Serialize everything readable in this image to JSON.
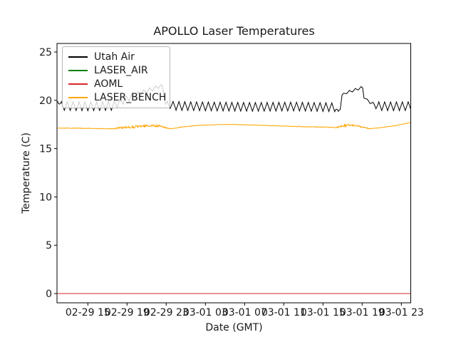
{
  "chart_data": {
    "type": "line",
    "title": "APOLLO Laser Temperatures",
    "xlabel": "Date (GMT)",
    "ylabel": "Temperature (C)",
    "grid": false,
    "legend_position": "upper left",
    "y_ticks": [
      0,
      5,
      10,
      15,
      20,
      25
    ],
    "ylim": [
      -1,
      26
    ],
    "x_tick_labels": [
      "02-29 15",
      "02-29 19",
      "02-29 23",
      "03-01 03",
      "03-01 07",
      "03-01 11",
      "03-01 15",
      "03-01 19",
      "03-01 23"
    ],
    "x_tick_hours": [
      3,
      7,
      11,
      15,
      19,
      23,
      27,
      31,
      35
    ],
    "x_hours_note": "point x-values are hours after 02-29 12:00 GMT",
    "xlim_hours": [
      -0.1,
      36
    ],
    "points_format": [
      "hour",
      "temperature_C",
      "local_noise_amplitude_C"
    ],
    "series": [
      {
        "name": "Utah Air",
        "color": "#000000",
        "noise": "zigzag",
        "noise_period_h": 0.6,
        "points": [
          [
            -0.1,
            19.9,
            0.02
          ],
          [
            0.35,
            19.42,
            0.45
          ],
          [
            3,
            19.38,
            0.45
          ],
          [
            5.5,
            19.42,
            0.45
          ],
          [
            7.5,
            20.4,
            0.3
          ],
          [
            10.3,
            21.45,
            0.18
          ],
          [
            10.6,
            21.5,
            0.12
          ],
          [
            10.95,
            19.6,
            0.3
          ],
          [
            12,
            19.42,
            0.45
          ],
          [
            16,
            19.36,
            0.45
          ],
          [
            20,
            19.32,
            0.45
          ],
          [
            24,
            19.36,
            0.45
          ],
          [
            28.2,
            19.28,
            0.45
          ],
          [
            28.55,
            18.8,
            0.1
          ],
          [
            28.75,
            19.1,
            0.08
          ],
          [
            28.95,
            20.55,
            0.1
          ],
          [
            29.4,
            20.8,
            0.12
          ],
          [
            30.2,
            21.05,
            0.14
          ],
          [
            30.9,
            21.3,
            0.12
          ],
          [
            31.05,
            21.3,
            0.08
          ],
          [
            31.18,
            20.3,
            0.06
          ],
          [
            31.55,
            20.0,
            0.1
          ],
          [
            32.1,
            19.6,
            0.2
          ],
          [
            32.6,
            19.4,
            0.45
          ],
          [
            34,
            19.38,
            0.45
          ],
          [
            36,
            19.4,
            0.45
          ]
        ]
      },
      {
        "name": "LASER_AIR",
        "color": "#008000",
        "noise": "none",
        "points": [],
        "note": "listed in legend but no data visible in plot"
      },
      {
        "name": "AOML",
        "color": "#d62728",
        "noise": "none",
        "points": [
          [
            -0.1,
            0.0,
            0
          ],
          [
            36,
            0.0,
            0
          ]
        ]
      },
      {
        "name": "LASER_BENCH",
        "color": "#ffa500",
        "noise": "jitter",
        "points": [
          [
            -0.1,
            17.12,
            0.03
          ],
          [
            3,
            17.1,
            0.03
          ],
          [
            5.6,
            17.05,
            0.04
          ],
          [
            6.2,
            17.15,
            0.1
          ],
          [
            7,
            17.2,
            0.13
          ],
          [
            8.5,
            17.32,
            0.13
          ],
          [
            9.6,
            17.38,
            0.1
          ],
          [
            10.5,
            17.33,
            0.12
          ],
          [
            11,
            17.15,
            0.07
          ],
          [
            11.5,
            17.05,
            0.03
          ],
          [
            12.5,
            17.22,
            0.03
          ],
          [
            14,
            17.38,
            0.025
          ],
          [
            16,
            17.48,
            0.02
          ],
          [
            18,
            17.5,
            0.02
          ],
          [
            20,
            17.44,
            0.02
          ],
          [
            22,
            17.37,
            0.025
          ],
          [
            24,
            17.3,
            0.03
          ],
          [
            26.5,
            17.24,
            0.03
          ],
          [
            28.3,
            17.18,
            0.04
          ],
          [
            28.8,
            17.3,
            0.1
          ],
          [
            29.5,
            17.42,
            0.12
          ],
          [
            30.4,
            17.38,
            0.1
          ],
          [
            31.1,
            17.22,
            0.06
          ],
          [
            31.8,
            17.05,
            0.03
          ],
          [
            33,
            17.18,
            0.02
          ],
          [
            34.5,
            17.4,
            0.02
          ],
          [
            36,
            17.72,
            0.02
          ]
        ]
      }
    ]
  }
}
